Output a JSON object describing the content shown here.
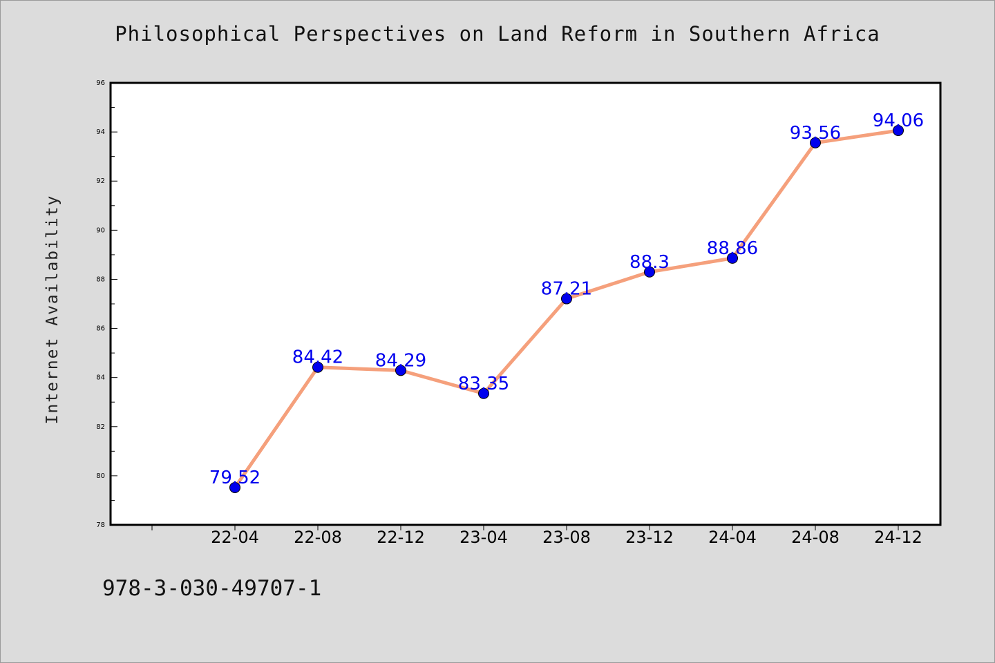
{
  "chart_data": {
    "type": "line",
    "title": "Philosophical Perspectives on Land Reform in Southern Africa",
    "xlabel": "",
    "ylabel": "Internet Availability",
    "categories": [
      "22-04",
      "22-08",
      "22-12",
      "23-04",
      "23-08",
      "23-12",
      "24-04",
      "24-08",
      "24-12"
    ],
    "series": [
      {
        "values": [
          79.52,
          84.42,
          84.29,
          83.35,
          87.21,
          88.3,
          88.86,
          93.56,
          94.06
        ]
      }
    ],
    "data_labels": [
      "79.52",
      "84.42",
      "84.29",
      "83.35",
      "87.21",
      "88.3",
      "88.86",
      "93.56",
      "94.06"
    ],
    "ylim": [
      78,
      96
    ],
    "yticks": [
      78,
      80,
      82,
      84,
      86,
      88,
      90,
      92,
      94,
      96
    ],
    "grid": false,
    "line_color": "#f5a07c",
    "marker_color": "#0000ee",
    "label_color": "#0000ee"
  },
  "footer": {
    "isbn": "978-3-030-49707-1"
  }
}
